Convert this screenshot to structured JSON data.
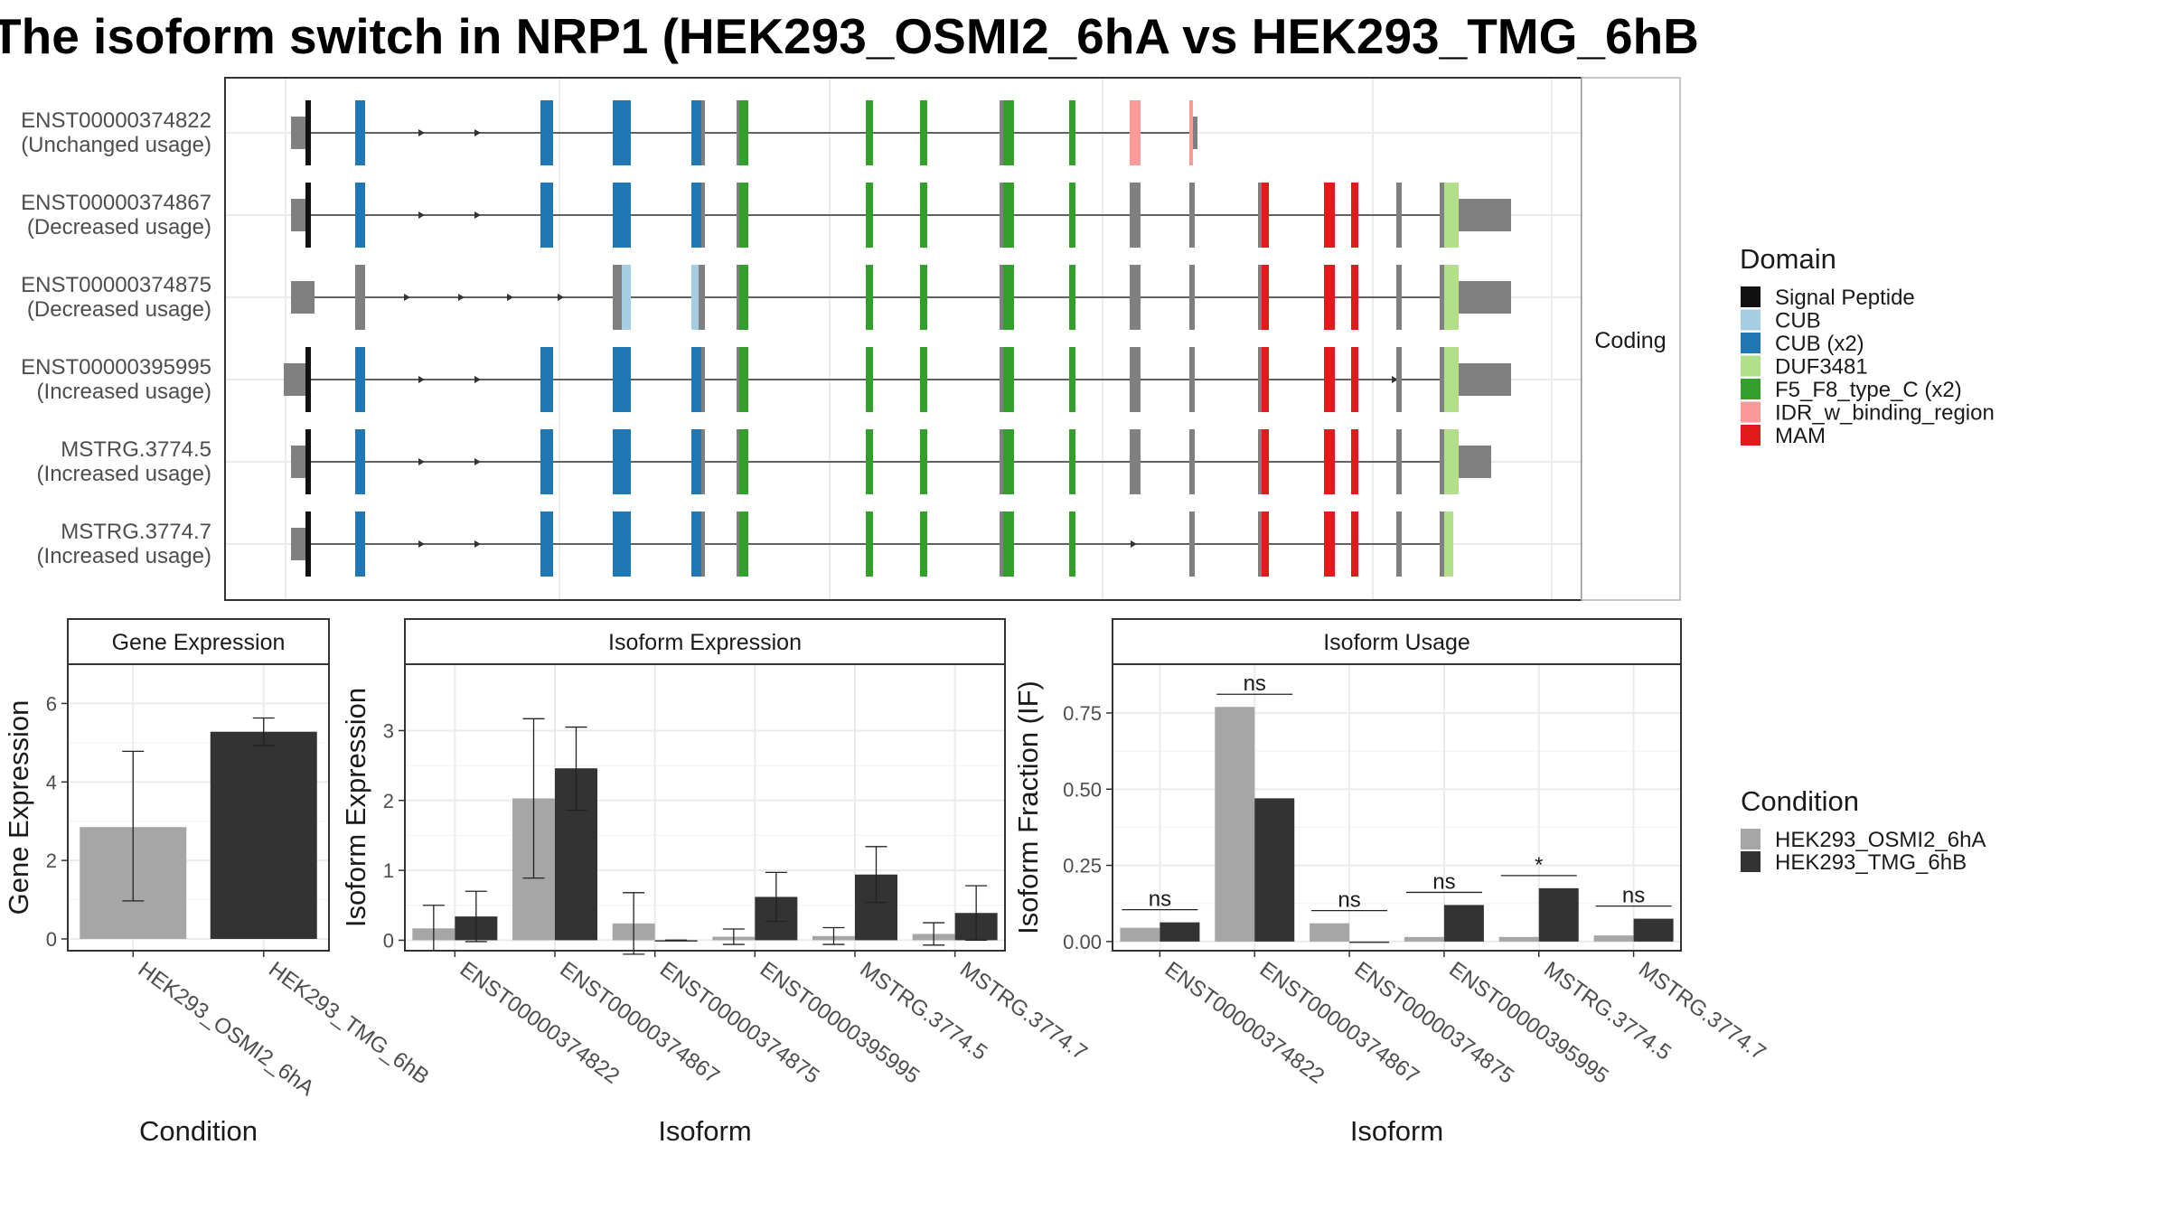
{
  "title": "The isoform switch in NRP1 (HEK293_OSMI2_6hA vs HEK293_TMG_6hB",
  "colors": {
    "Signal Peptide": "#111111",
    "CUB": "#a6cee3",
    "CUB (x2)": "#1f78b4",
    "DUF3481": "#b2df8a",
    "F5_F8_type_C (x2)": "#33a02c",
    "IDR_w_binding_region": "#fb9a99",
    "MAM": "#e31a1c",
    "none": "#808080",
    "cond_a": "#a6a6a6",
    "cond_b": "#333333"
  },
  "transcript_panel": {
    "strip_label": "Coding",
    "legend_title": "Domain",
    "legend_items": [
      "Signal Peptide",
      "CUB",
      "CUB (x2)",
      "DUF3481",
      "F5_F8_type_C (x2)",
      "IDR_w_binding_region",
      "MAM"
    ],
    "transcripts": [
      {
        "id": "ENST00000374822",
        "usage": "(Unchanged usage)",
        "span": [
          322,
          1325
        ],
        "arrows": [
          468,
          530,
          1114
        ],
        "blocks": [
          [
            322,
            338,
            "none"
          ],
          [
            338,
            344,
            "Signal Peptide"
          ],
          [
            393,
            404,
            "CUB (x2)"
          ],
          [
            598,
            612,
            "CUB (x2)"
          ],
          [
            678,
            698,
            "CUB (x2)"
          ],
          [
            765,
            776,
            "CUB (x2)"
          ],
          [
            776,
            780,
            "none"
          ],
          [
            815,
            818,
            "none"
          ],
          [
            818,
            828,
            "F5_F8_type_C (x2)"
          ],
          [
            958,
            966,
            "F5_F8_type_C (x2)"
          ],
          [
            1018,
            1026,
            "F5_F8_type_C (x2)"
          ],
          [
            1106,
            1110,
            "none"
          ],
          [
            1110,
            1122,
            "F5_F8_type_C (x2)"
          ],
          [
            1183,
            1190,
            "F5_F8_type_C (x2)"
          ],
          [
            1250,
            1262,
            "IDR_w_binding_region"
          ],
          [
            1316,
            1320,
            "IDR_w_binding_region"
          ],
          [
            1320,
            1325,
            "none"
          ]
        ]
      },
      {
        "id": "ENST00000374867",
        "usage": "(Decreased usage)",
        "span": [
          322,
          1672
        ],
        "arrows": [
          468,
          530
        ],
        "blocks": [
          [
            322,
            338,
            "none"
          ],
          [
            338,
            344,
            "Signal Peptide"
          ],
          [
            393,
            404,
            "CUB (x2)"
          ],
          [
            598,
            612,
            "CUB (x2)"
          ],
          [
            678,
            698,
            "CUB (x2)"
          ],
          [
            765,
            776,
            "CUB (x2)"
          ],
          [
            776,
            780,
            "none"
          ],
          [
            815,
            818,
            "none"
          ],
          [
            818,
            828,
            "F5_F8_type_C (x2)"
          ],
          [
            958,
            966,
            "F5_F8_type_C (x2)"
          ],
          [
            1018,
            1026,
            "F5_F8_type_C (x2)"
          ],
          [
            1106,
            1110,
            "none"
          ],
          [
            1110,
            1122,
            "F5_F8_type_C (x2)"
          ],
          [
            1183,
            1190,
            "F5_F8_type_C (x2)"
          ],
          [
            1250,
            1262,
            "none"
          ],
          [
            1316,
            1322,
            "none"
          ],
          [
            1392,
            1396,
            "none"
          ],
          [
            1396,
            1404,
            "MAM"
          ],
          [
            1465,
            1477,
            "MAM"
          ],
          [
            1495,
            1503,
            "MAM"
          ],
          [
            1545,
            1551,
            "none"
          ],
          [
            1593,
            1598,
            "none"
          ],
          [
            1598,
            1614,
            "DUF3481"
          ],
          [
            1614,
            1672,
            "none"
          ]
        ]
      },
      {
        "id": "ENST00000374875",
        "usage": "(Decreased usage)",
        "span": [
          322,
          1672
        ],
        "arrows": [
          452,
          512,
          566,
          622
        ],
        "blocks": [
          [
            322,
            348,
            "none"
          ],
          [
            393,
            404,
            "none"
          ],
          [
            678,
            688,
            "none"
          ],
          [
            688,
            698,
            "CUB"
          ],
          [
            765,
            773,
            "CUB"
          ],
          [
            773,
            780,
            "none"
          ],
          [
            815,
            818,
            "none"
          ],
          [
            818,
            828,
            "F5_F8_type_C (x2)"
          ],
          [
            958,
            966,
            "F5_F8_type_C (x2)"
          ],
          [
            1018,
            1026,
            "F5_F8_type_C (x2)"
          ],
          [
            1106,
            1110,
            "none"
          ],
          [
            1110,
            1122,
            "F5_F8_type_C (x2)"
          ],
          [
            1183,
            1190,
            "F5_F8_type_C (x2)"
          ],
          [
            1250,
            1262,
            "none"
          ],
          [
            1316,
            1322,
            "none"
          ],
          [
            1392,
            1396,
            "none"
          ],
          [
            1396,
            1404,
            "MAM"
          ],
          [
            1465,
            1477,
            "MAM"
          ],
          [
            1495,
            1503,
            "MAM"
          ],
          [
            1545,
            1551,
            "none"
          ],
          [
            1593,
            1598,
            "none"
          ],
          [
            1598,
            1614,
            "DUF3481"
          ],
          [
            1614,
            1672,
            "none"
          ]
        ]
      },
      {
        "id": "ENST00000395995",
        "usage": "(Increased usage)",
        "span": [
          314,
          1672
        ],
        "arrows": [
          468,
          530,
          1545
        ],
        "blocks": [
          [
            314,
            338,
            "none"
          ],
          [
            338,
            344,
            "Signal Peptide"
          ],
          [
            393,
            404,
            "CUB (x2)"
          ],
          [
            598,
            612,
            "CUB (x2)"
          ],
          [
            678,
            698,
            "CUB (x2)"
          ],
          [
            765,
            776,
            "CUB (x2)"
          ],
          [
            776,
            780,
            "none"
          ],
          [
            815,
            818,
            "none"
          ],
          [
            818,
            828,
            "F5_F8_type_C (x2)"
          ],
          [
            958,
            966,
            "F5_F8_type_C (x2)"
          ],
          [
            1018,
            1026,
            "F5_F8_type_C (x2)"
          ],
          [
            1106,
            1110,
            "none"
          ],
          [
            1110,
            1122,
            "F5_F8_type_C (x2)"
          ],
          [
            1183,
            1190,
            "F5_F8_type_C (x2)"
          ],
          [
            1250,
            1262,
            "none"
          ],
          [
            1316,
            1322,
            "none"
          ],
          [
            1392,
            1396,
            "none"
          ],
          [
            1396,
            1404,
            "MAM"
          ],
          [
            1465,
            1477,
            "MAM"
          ],
          [
            1495,
            1503,
            "MAM"
          ],
          [
            1545,
            1551,
            "none"
          ],
          [
            1593,
            1598,
            "none"
          ],
          [
            1598,
            1614,
            "DUF3481"
          ],
          [
            1614,
            1672,
            "none"
          ]
        ]
      },
      {
        "id": "MSTRG.3774.5",
        "usage": "(Increased usage)",
        "span": [
          322,
          1650
        ],
        "arrows": [
          468,
          530
        ],
        "blocks": [
          [
            322,
            338,
            "none"
          ],
          [
            338,
            344,
            "Signal Peptide"
          ],
          [
            393,
            404,
            "CUB (x2)"
          ],
          [
            598,
            612,
            "CUB (x2)"
          ],
          [
            678,
            698,
            "CUB (x2)"
          ],
          [
            765,
            776,
            "CUB (x2)"
          ],
          [
            776,
            780,
            "none"
          ],
          [
            815,
            818,
            "none"
          ],
          [
            818,
            828,
            "F5_F8_type_C (x2)"
          ],
          [
            958,
            966,
            "F5_F8_type_C (x2)"
          ],
          [
            1018,
            1026,
            "F5_F8_type_C (x2)"
          ],
          [
            1106,
            1110,
            "none"
          ],
          [
            1110,
            1122,
            "F5_F8_type_C (x2)"
          ],
          [
            1183,
            1190,
            "F5_F8_type_C (x2)"
          ],
          [
            1250,
            1262,
            "none"
          ],
          [
            1316,
            1322,
            "none"
          ],
          [
            1392,
            1396,
            "none"
          ],
          [
            1396,
            1404,
            "MAM"
          ],
          [
            1465,
            1477,
            "MAM"
          ],
          [
            1495,
            1503,
            "MAM"
          ],
          [
            1545,
            1551,
            "none"
          ],
          [
            1593,
            1598,
            "none"
          ],
          [
            1598,
            1614,
            "DUF3481"
          ],
          [
            1614,
            1650,
            "none"
          ]
        ]
      },
      {
        "id": "MSTRG.3774.7",
        "usage": "(Increased usage)",
        "span": [
          322,
          1608
        ],
        "arrows": [
          468,
          530,
          1256
        ],
        "blocks": [
          [
            322,
            338,
            "none"
          ],
          [
            338,
            344,
            "Signal Peptide"
          ],
          [
            393,
            404,
            "CUB (x2)"
          ],
          [
            598,
            612,
            "CUB (x2)"
          ],
          [
            678,
            698,
            "CUB (x2)"
          ],
          [
            765,
            776,
            "CUB (x2)"
          ],
          [
            776,
            780,
            "none"
          ],
          [
            815,
            818,
            "none"
          ],
          [
            818,
            828,
            "F5_F8_type_C (x2)"
          ],
          [
            958,
            966,
            "F5_F8_type_C (x2)"
          ],
          [
            1018,
            1026,
            "F5_F8_type_C (x2)"
          ],
          [
            1106,
            1110,
            "none"
          ],
          [
            1110,
            1122,
            "F5_F8_type_C (x2)"
          ],
          [
            1183,
            1190,
            "F5_F8_type_C (x2)"
          ],
          [
            1316,
            1322,
            "none"
          ],
          [
            1392,
            1396,
            "none"
          ],
          [
            1396,
            1404,
            "MAM"
          ],
          [
            1465,
            1477,
            "MAM"
          ],
          [
            1495,
            1503,
            "MAM"
          ],
          [
            1545,
            1551,
            "none"
          ],
          [
            1593,
            1598,
            "none"
          ],
          [
            1598,
            1608,
            "DUF3481"
          ]
        ]
      }
    ]
  },
  "chart_data": [
    {
      "type": "bar",
      "title": "Gene Expression",
      "xlabel": "Condition",
      "ylabel": "Gene Expression",
      "categories": [
        "HEK293_OSMI2_6hA",
        "HEK293_TMG_6hB"
      ],
      "values": [
        2.85,
        5.28
      ],
      "error_low": [
        0.97,
        4.93
      ],
      "error_high": [
        4.78,
        5.63
      ],
      "ylim": [
        -0.3,
        7.0
      ],
      "yticks": [
        0,
        2,
        4,
        6
      ],
      "grid": true
    },
    {
      "type": "bar",
      "title": "Isoform Expression",
      "xlabel": "Isoform",
      "ylabel": "Isoform Expression",
      "categories": [
        "ENST00000374822",
        "ENST00000374867",
        "ENST00000374875",
        "ENST00000395995",
        "MSTRG.3774.5",
        "MSTRG.3774.7"
      ],
      "series": [
        {
          "name": "HEK293_OSMI2_6hA",
          "values": [
            0.17,
            2.03,
            0.24,
            0.05,
            0.06,
            0.09
          ],
          "error_low": [
            -0.15,
            0.89,
            -0.2,
            -0.06,
            -0.06,
            -0.07
          ],
          "error_high": [
            0.5,
            3.17,
            0.68,
            0.16,
            0.18,
            0.25
          ]
        },
        {
          "name": "HEK293_TMG_6hB",
          "values": [
            0.34,
            2.46,
            0.0,
            0.62,
            0.94,
            0.39
          ],
          "error_low": [
            -0.02,
            1.86,
            0.0,
            0.27,
            0.54,
            0.0
          ],
          "error_high": [
            0.7,
            3.05,
            0.0,
            0.97,
            1.34,
            0.78
          ]
        }
      ],
      "ylim": [
        -0.15,
        3.95
      ],
      "yticks": [
        0,
        1,
        2,
        3
      ],
      "grid": true
    },
    {
      "type": "bar",
      "title": "Isoform Usage",
      "xlabel": "Isoform",
      "ylabel": "Isoform Fraction (IF)",
      "categories": [
        "ENST00000374822",
        "ENST00000374867",
        "ENST00000374875",
        "ENST00000395995",
        "MSTRG.3774.5",
        "MSTRG.3774.7"
      ],
      "series": [
        {
          "name": "HEK293_OSMI2_6hA",
          "values": [
            0.045,
            0.77,
            0.06,
            0.015,
            0.015,
            0.02
          ]
        },
        {
          "name": "HEK293_TMG_6hB",
          "values": [
            0.063,
            0.47,
            0.0,
            0.12,
            0.175,
            0.075
          ]
        }
      ],
      "significance": [
        "ns",
        "ns",
        "ns",
        "ns",
        "*",
        "ns"
      ],
      "ylim": [
        -0.03,
        0.91
      ],
      "yticks": [
        0.0,
        0.25,
        0.5,
        0.75
      ],
      "ytick_labels": [
        "0.00",
        "0.25",
        "0.50",
        "0.75"
      ],
      "grid": true
    }
  ],
  "condition_legend": {
    "title": "Condition",
    "items": [
      "HEK293_OSMI2_6hA",
      "HEK293_TMG_6hB"
    ]
  }
}
